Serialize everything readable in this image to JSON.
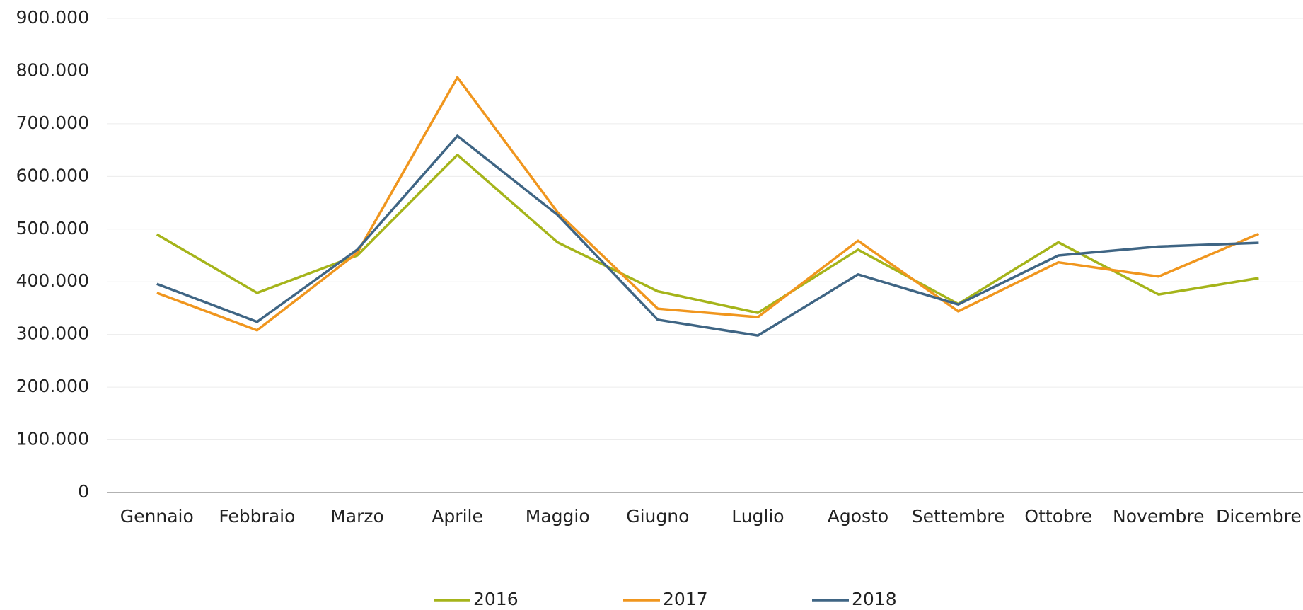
{
  "chart_data": {
    "type": "line",
    "categories": [
      "Gennaio",
      "Febbraio",
      "Marzo",
      "Aprile",
      "Maggio",
      "Giugno",
      "Luglio",
      "Agosto",
      "Settembre",
      "Ottobre",
      "Novembre",
      "Dicembre"
    ],
    "series": [
      {
        "name": "2016",
        "color": "#a5b41a",
        "values": [
          490000,
          379000,
          450000,
          641000,
          475000,
          382000,
          341000,
          461000,
          358000,
          475000,
          376000,
          407000
        ]
      },
      {
        "name": "2017",
        "color": "#f0961e",
        "values": [
          379000,
          308000,
          455000,
          788000,
          532000,
          349000,
          333000,
          478000,
          344000,
          437000,
          410000,
          491000
        ]
      },
      {
        "name": "2018",
        "color": "#3f6584",
        "values": [
          396000,
          324000,
          461000,
          677000,
          527000,
          328000,
          298000,
          414000,
          357000,
          450000,
          467000,
          474000
        ]
      }
    ],
    "ylim": [
      0,
      900000
    ],
    "yticks": [
      0,
      {
        "value": 100000,
        "label": "100.000"
      },
      {
        "value": 200000,
        "label": "200.000"
      },
      {
        "value": 300000,
        "label": "300.000"
      },
      {
        "value": 400000,
        "label": "400.000"
      },
      {
        "value": 500000,
        "label": "500.000"
      },
      {
        "value": 600000,
        "label": "600.000"
      },
      {
        "value": 700000,
        "label": "700.000"
      },
      {
        "value": 800000,
        "label": "800.000"
      },
      {
        "value": 900000,
        "label": "900.000"
      }
    ],
    "grid": true,
    "legend": "bottom"
  }
}
